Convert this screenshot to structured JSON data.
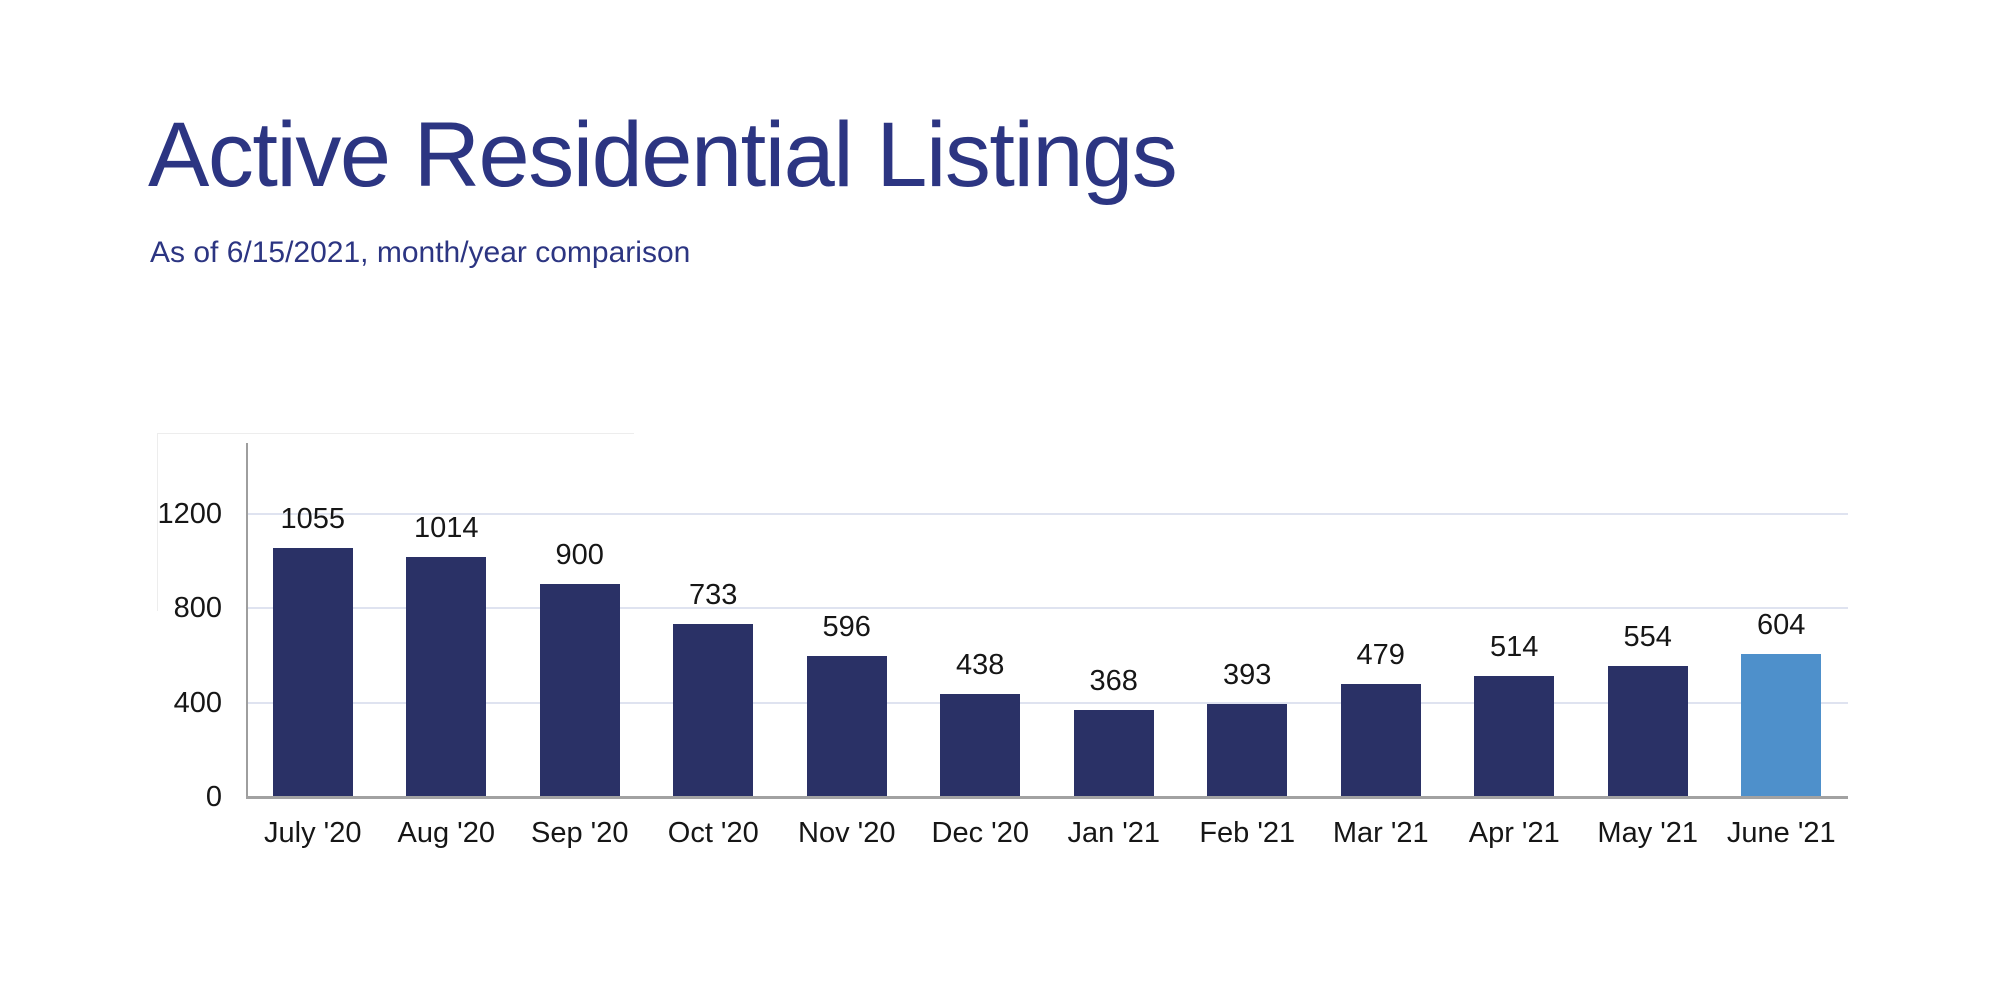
{
  "header": {
    "title": "Active Residential Listings",
    "subtitle": "As of 6/15/2021, month/year comparison"
  },
  "chart_data": {
    "type": "bar",
    "title": "Active Residential Listings",
    "subtitle": "As of 6/15/2021, month/year comparison",
    "categories": [
      "July '20",
      "Aug '20",
      "Sep '20",
      "Oct '20",
      "Nov '20",
      "Dec '20",
      "Jan '21",
      "Feb '21",
      "Mar '21",
      "Apr '21",
      "May '21",
      "June '21"
    ],
    "values": [
      1055,
      1014,
      900,
      733,
      596,
      438,
      368,
      393,
      479,
      514,
      554,
      604
    ],
    "data_labels": [
      1055,
      1014,
      900,
      733,
      596,
      438,
      368,
      393,
      479,
      514,
      554,
      604
    ],
    "highlighted_category": "June '21",
    "highlighted_index": 11,
    "xlabel": "",
    "ylabel": "",
    "y_ticks": [
      0,
      400,
      800,
      1200
    ],
    "ylim": [
      0,
      1500
    ],
    "grid": "horizontal",
    "legend": "none",
    "colors": {
      "bar": "#2a3166",
      "bar_highlight": "#4e90cb",
      "title_text": "#2c3582",
      "label_text": "#161616",
      "gridline": "#dfe3f0",
      "y_axis_line": "#9e9e9e",
      "x_axis_line": "#a2a2a2"
    }
  }
}
